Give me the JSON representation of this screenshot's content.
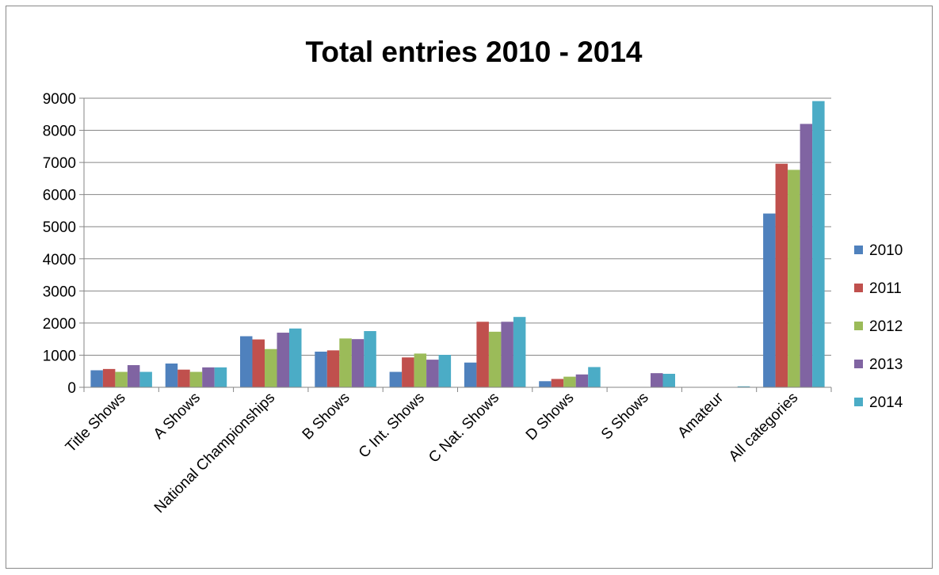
{
  "chart_data": {
    "type": "bar",
    "title": "Total entries 2010 - 2014",
    "xlabel": "",
    "ylabel": "",
    "ylim": [
      0,
      9000
    ],
    "yticks": [
      0,
      1000,
      2000,
      3000,
      4000,
      5000,
      6000,
      7000,
      8000,
      9000
    ],
    "grid": true,
    "legend_position": "right",
    "categories": [
      "Title Shows",
      "A Shows",
      "National Championships",
      "B Shows",
      "C Int. Shows",
      "C Nat. Shows",
      "D Shows",
      "S Shows",
      "Amateur",
      "All categories"
    ],
    "series": [
      {
        "name": "2010",
        "color": "#4F81BD",
        "values": [
          530,
          740,
          1590,
          1110,
          480,
          770,
          190,
          0,
          0,
          5410
        ]
      },
      {
        "name": "2011",
        "color": "#C0504D",
        "values": [
          570,
          550,
          1490,
          1150,
          930,
          2040,
          260,
          0,
          0,
          6960
        ]
      },
      {
        "name": "2012",
        "color": "#9BBB59",
        "values": [
          480,
          480,
          1190,
          1520,
          1050,
          1730,
          330,
          0,
          0,
          6770
        ]
      },
      {
        "name": "2013",
        "color": "#8064A2",
        "values": [
          690,
          620,
          1700,
          1500,
          860,
          2040,
          400,
          440,
          0,
          8200
        ]
      },
      {
        "name": "2014",
        "color": "#4BACC6",
        "values": [
          480,
          620,
          1830,
          1750,
          1010,
          2190,
          630,
          420,
          30,
          8910
        ]
      }
    ]
  }
}
